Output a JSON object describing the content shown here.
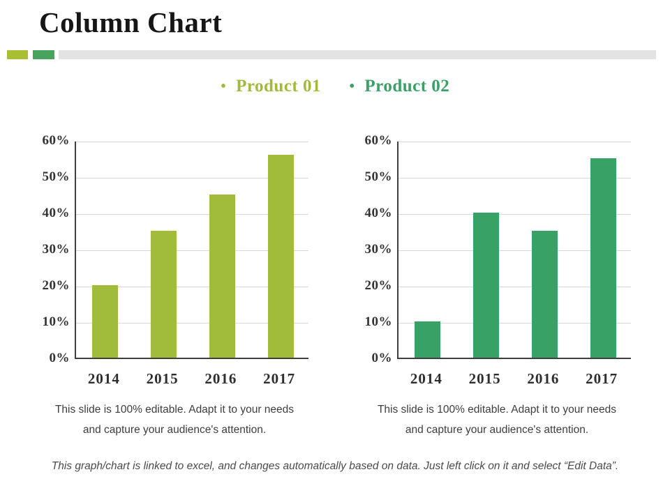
{
  "slide": {
    "title": "Column Chart",
    "divider": {
      "square1_color": "#a9bf33",
      "square2_color": "#48a45c",
      "bar_color": "#e3e3e3"
    },
    "legend": [
      {
        "bullet": "•",
        "label": "Product 01",
        "color": "#a0bb3c"
      },
      {
        "bullet": "•",
        "label": "Product 02",
        "color": "#38a266"
      }
    ],
    "caption_line1": "This slide is 100% editable. Adapt it to your needs",
    "caption_line2": "and capture your audience's attention.",
    "footer": "This graph/chart is linked to excel, and changes automatically based on data. Just left click on it and select “Edit Data”."
  },
  "chart_data": [
    {
      "type": "bar",
      "title": "Product 01",
      "categories": [
        "2014",
        "2015",
        "2016",
        "2017"
      ],
      "values": [
        20,
        35,
        45,
        56
      ],
      "unit": "%",
      "ylim": [
        0,
        60
      ],
      "ytick_step": 10,
      "bar_color": "#a0bc3a",
      "grid": true,
      "xlabel": "",
      "ylabel": ""
    },
    {
      "type": "bar",
      "title": "Product 02",
      "categories": [
        "2014",
        "2015",
        "2016",
        "2017"
      ],
      "values": [
        10,
        40,
        35,
        55
      ],
      "unit": "%",
      "ylim": [
        0,
        60
      ],
      "ytick_step": 10,
      "bar_color": "#38a266",
      "grid": true,
      "xlabel": "",
      "ylabel": ""
    }
  ]
}
